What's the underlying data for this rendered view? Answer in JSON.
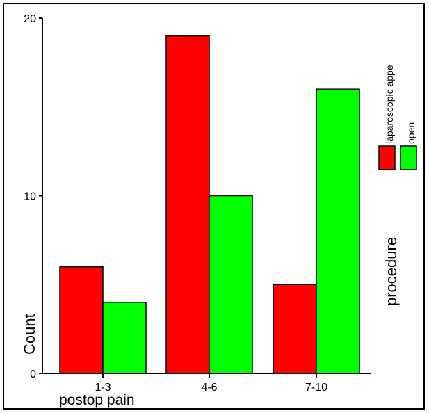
{
  "chart_data": {
    "type": "bar",
    "categories": [
      "1-3",
      "4-6",
      "7-10"
    ],
    "series": [
      {
        "name": "laparoscopic appe",
        "values": [
          6,
          19,
          5
        ],
        "color": "#ff0000"
      },
      {
        "name": "open",
        "values": [
          4,
          10,
          16
        ],
        "color": "#00ff00"
      }
    ],
    "xlabel": "postop pain",
    "ylabel": "Count",
    "ylim": [
      0,
      20
    ],
    "yticks": [
      "0",
      "10",
      "20"
    ],
    "legend_title": "procedure",
    "legend_position": "right",
    "grid": false
  }
}
